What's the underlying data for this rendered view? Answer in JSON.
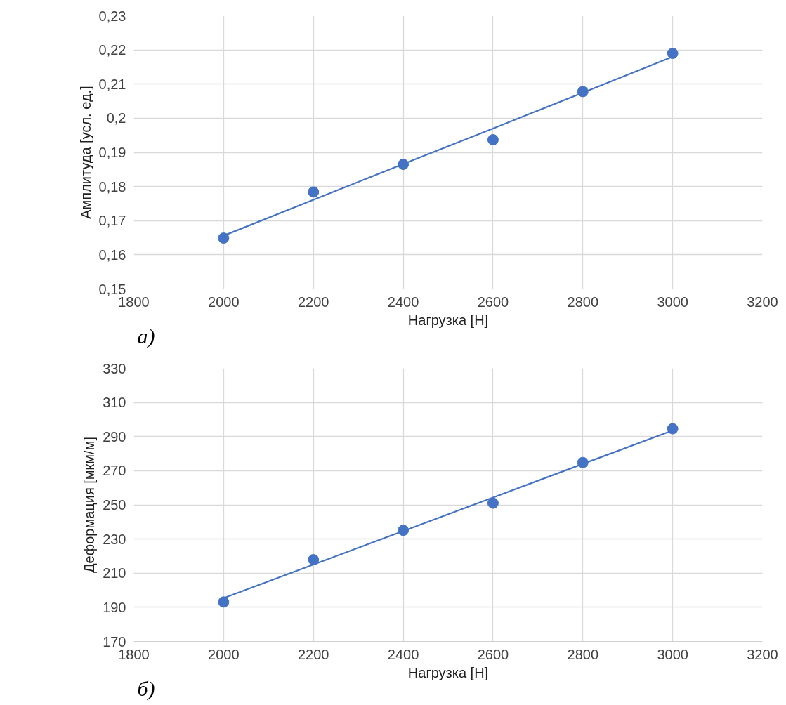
{
  "chart_data": [
    {
      "type": "scatter",
      "xlabel": "Нагрузка [Н]",
      "ylabel": "Амплитуда [усл. ед.]",
      "annotations": [
        "а)"
      ],
      "x": [
        2000,
        2200,
        2400,
        2600,
        2800,
        3000
      ],
      "series": [
        {
          "color": "#4472c4",
          "marker": "circle",
          "values": [
            0.1649,
            0.1784,
            0.1865,
            0.1937,
            0.2078,
            0.219
          ]
        },
        {
          "type": "line",
          "color": "#4472c4",
          "marker": "none",
          "line_style": "solid",
          "values": [
            0.1656,
            0.1761,
            0.1866,
            0.197,
            0.2075,
            0.218
          ]
        }
      ],
      "xlim": [
        1800,
        3200
      ],
      "xticks": [
        1800,
        2000,
        2200,
        2400,
        2600,
        2800,
        3000,
        3200
      ],
      "ylim": [
        0.15,
        0.23
      ],
      "yticks": [
        {
          "value": 0.15,
          "label": "0,15"
        },
        {
          "value": 0.16,
          "label": "0,16"
        },
        {
          "value": 0.17,
          "label": "0,17"
        },
        {
          "value": 0.18,
          "label": "0,18"
        },
        {
          "value": 0.19,
          "label": "0,19"
        },
        {
          "value": 0.2,
          "label": "0,2"
        },
        {
          "value": 0.21,
          "label": "0,21"
        },
        {
          "value": 0.22,
          "label": "0,22"
        },
        {
          "value": 0.23,
          "label": "0,23"
        }
      ],
      "grid": true
    },
    {
      "type": "scatter",
      "xlabel": "Нагрузка [Н]",
      "ylabel": "Деформация [мкм/м]",
      "annotations": [
        "б)"
      ],
      "x": [
        2000,
        2200,
        2400,
        2600,
        2800,
        3000
      ],
      "series": [
        {
          "color": "#4472c4",
          "marker": "circle",
          "values": [
            193.1,
            217.9,
            235.1,
            251,
            274.8,
            294.6
          ]
        },
        {
          "type": "line",
          "color": "#4472c4",
          "marker": "none",
          "line_style": "solid",
          "values": [
            195.4,
            215,
            234.7,
            254.3,
            274,
            293.6
          ]
        }
      ],
      "xlim": [
        1800,
        3200
      ],
      "xticks": [
        1800,
        2000,
        2200,
        2400,
        2600,
        2800,
        3000,
        3200
      ],
      "ylim": [
        170,
        330
      ],
      "yticks": [
        170,
        190,
        210,
        230,
        250,
        270,
        290,
        310,
        330
      ],
      "grid": true
    }
  ]
}
